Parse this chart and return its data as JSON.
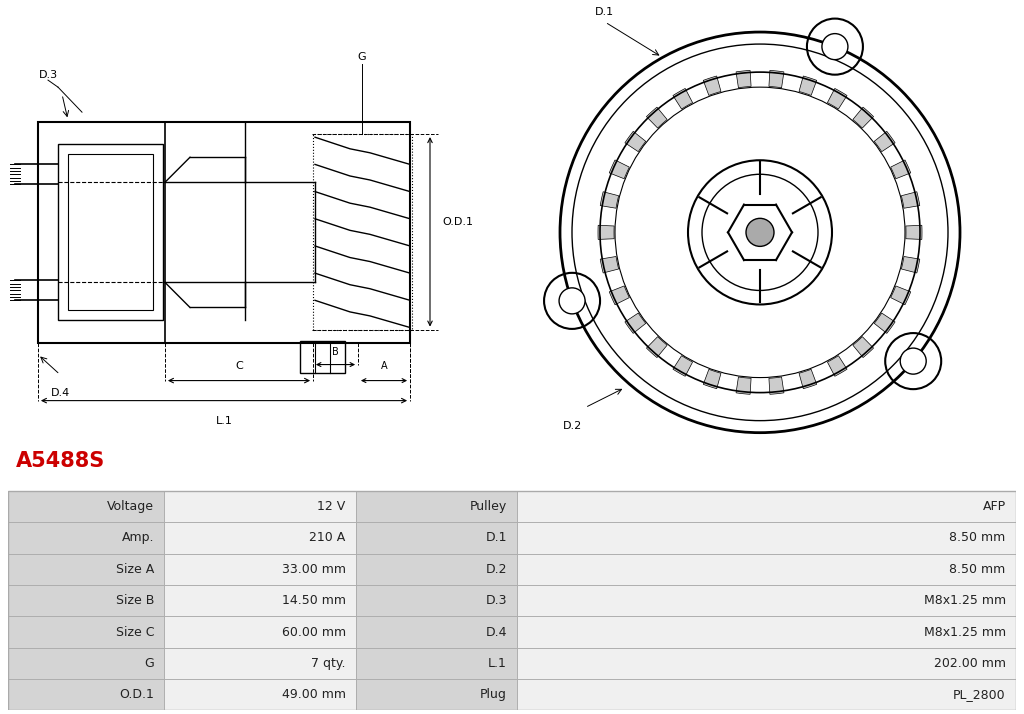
{
  "title": "A5488S",
  "title_color": "#cc0000",
  "bg_color": "#ffffff",
  "table_header_bg": "#d4d4d4",
  "table_value_bg": "#f0f0f0",
  "table_border": "#aaaaaa",
  "table_data": [
    [
      "Voltage",
      "12 V",
      "Pulley",
      "AFP"
    ],
    [
      "Amp.",
      "210 A",
      "D.1",
      "8.50 mm"
    ],
    [
      "Size A",
      "33.00 mm",
      "D.2",
      "8.50 mm"
    ],
    [
      "Size B",
      "14.50 mm",
      "D.3",
      "M8x1.25 mm"
    ],
    [
      "Size C",
      "60.00 mm",
      "D.4",
      "M8x1.25 mm"
    ],
    [
      "G",
      "7 qty.",
      "L.1",
      "202.00 mm"
    ],
    [
      "O.D.1",
      "49.00 mm",
      "Plug",
      "PL_2800"
    ]
  ]
}
